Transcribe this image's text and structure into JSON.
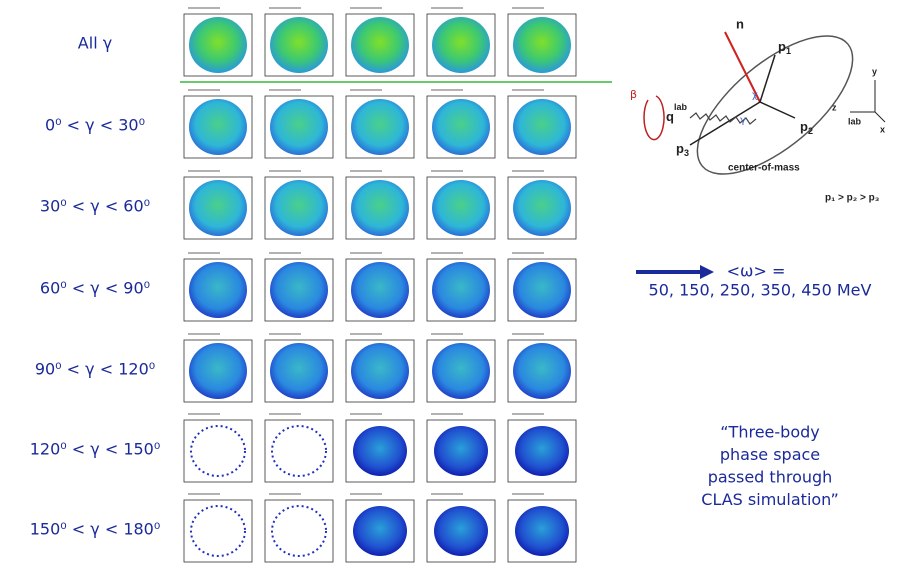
{
  "rows": [
    {
      "label": "All γ"
    },
    {
      "label": "0⁰ < γ < 30⁰"
    },
    {
      "label": "30⁰ < γ < 60⁰"
    },
    {
      "label": "60⁰ < γ < 90⁰"
    },
    {
      "label": "90⁰ < γ < 120⁰"
    },
    {
      "label": "120⁰ < γ < 150⁰"
    },
    {
      "label": "150⁰ < γ < 180⁰"
    }
  ],
  "diagram": {
    "n": "n",
    "p1": {
      "label": "p",
      "sub": "1"
    },
    "p2": {
      "label": "p",
      "sub": "2"
    },
    "p3": {
      "label": "p",
      "sub": "3"
    },
    "q": {
      "label": "q",
      "sup": "lab"
    },
    "beta": "β",
    "gamma": "γ",
    "chi": "χ",
    "com": "center-of-mass",
    "axes": {
      "y": "y",
      "z": "z",
      "x": "x",
      "lab": "lab"
    },
    "order": "p₁ > p₂ > p₃"
  },
  "omega": {
    "line1": "<ω> =",
    "line2": "50, 150, 250, 350, 450 MeV"
  },
  "quote": [
    "“Three-body",
    "phase space",
    "passed through",
    "CLAS simulation”"
  ]
}
